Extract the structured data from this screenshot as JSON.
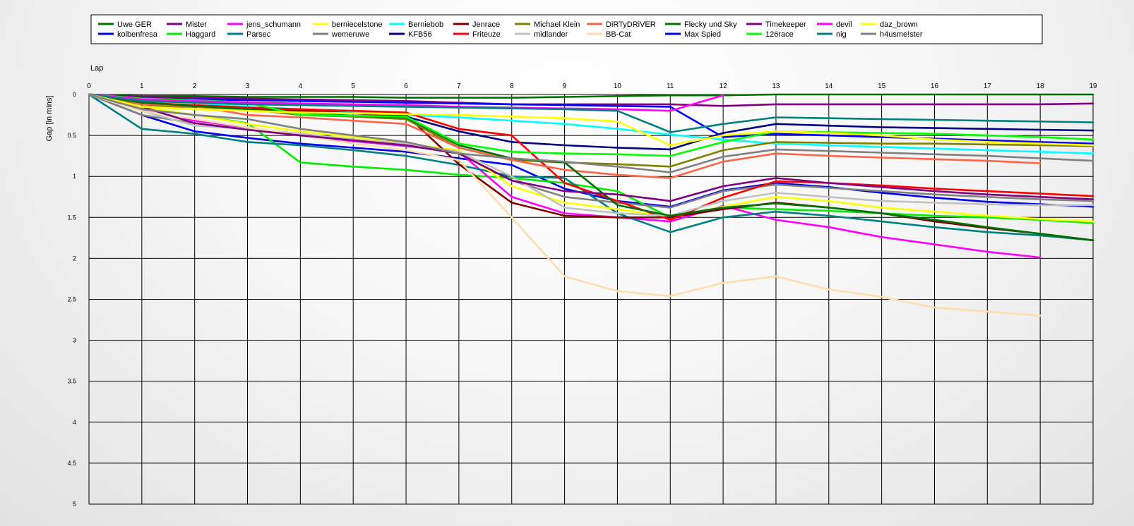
{
  "chart_data": {
    "type": "line",
    "xlabel": "Lap",
    "ylabel": "Gap [in mins]",
    "x": [
      0,
      1,
      2,
      3,
      4,
      5,
      6,
      7,
      8,
      9,
      10,
      11,
      12,
      13,
      14,
      15,
      16,
      17,
      18,
      19
    ],
    "xlim": [
      0,
      19
    ],
    "ylim": [
      0,
      5
    ],
    "y_inverted": true,
    "y_ticks": [
      0,
      0.5,
      1,
      1.5,
      2,
      2.5,
      3,
      3.5,
      4,
      4.5,
      5
    ],
    "grid": true,
    "legend_position": "top",
    "series": [
      {
        "name": "Uwe GER",
        "color": "#007000",
        "values": [
          0,
          0.02,
          0.02,
          0.03,
          0.03,
          0.03,
          0.04,
          0.04,
          0.04,
          0.03,
          0.02,
          0.01,
          0.01,
          0,
          0,
          0,
          0,
          0,
          0,
          0
        ]
      },
      {
        "name": "kolbenfresa",
        "color": "#0000ee",
        "values": [
          0,
          0.25,
          0.45,
          0.53,
          0.6,
          0.65,
          0.7,
          0.78,
          0.86,
          1.15,
          1.3,
          1.37,
          1.17,
          1.08,
          1.13,
          1.2,
          1.26,
          1.31,
          1.34,
          1.37
        ]
      },
      {
        "name": "Mister",
        "color": "#800080",
        "values": [
          0,
          0.03,
          0.04,
          0.05,
          0.06,
          0.07,
          0.08,
          0.1,
          0.12,
          0.12,
          0.12,
          0.12,
          0.14,
          0.12,
          0.12,
          0.12,
          0.12,
          0.12,
          0.12,
          0.11
        ]
      },
      {
        "name": "Haggard",
        "color": "#00ee00",
        "values": [
          0,
          0.15,
          0.25,
          0.35,
          0.83,
          0.88,
          0.92,
          0.98,
          1.02,
          1.08,
          1.18,
          1.5,
          1.38,
          1.4,
          1.42,
          1.45,
          1.48,
          1.5,
          1.53,
          1.57
        ]
      },
      {
        "name": "jens_schumann",
        "color": "#ff00ff",
        "values": [
          0,
          0.18,
          0.32,
          0.4,
          0.5,
          0.57,
          0.63,
          0.7,
          1.25,
          1.45,
          1.5,
          1.55,
          1.36,
          1.53,
          1.62,
          1.74,
          1.83,
          1.92,
          1.99,
          null
        ]
      },
      {
        "name": "Parsec",
        "color": "#008080",
        "values": [
          0,
          0.42,
          0.48,
          0.58,
          0.62,
          0.68,
          0.75,
          0.86,
          1.0,
          1.02,
          1.45,
          1.68,
          1.5,
          1.43,
          1.48,
          1.55,
          1.62,
          1.68,
          1.72,
          1.78
        ]
      },
      {
        "name": "berniecelstone",
        "color": "#ffff00",
        "values": [
          0,
          0.15,
          0.25,
          0.36,
          0.45,
          0.52,
          0.6,
          0.68,
          1.12,
          1.32,
          1.4,
          1.5,
          1.37,
          1.25,
          1.3,
          1.38,
          1.43,
          1.48,
          1.52,
          1.55
        ]
      },
      {
        "name": "wemeruwe",
        "color": "#808080",
        "values": [
          0,
          0.25,
          0.35,
          0.42,
          0.48,
          0.55,
          0.62,
          0.72,
          1.05,
          1.25,
          1.32,
          1.38,
          1.18,
          1.1,
          1.14,
          1.18,
          1.22,
          1.25,
          1.28,
          1.3
        ]
      },
      {
        "name": "Berniebob",
        "color": "#00ffff",
        "values": [
          0,
          0.05,
          0.1,
          0.15,
          0.18,
          0.22,
          0.25,
          0.28,
          0.32,
          0.36,
          0.42,
          0.49,
          0.55,
          0.6,
          0.62,
          0.64,
          0.66,
          0.68,
          0.7,
          0.72
        ]
      },
      {
        "name": "KFB56",
        "color": "#000080",
        "values": [
          0,
          0.12,
          0.15,
          0.18,
          0.2,
          0.23,
          0.27,
          0.45,
          0.58,
          0.62,
          0.65,
          0.67,
          0.47,
          0.36,
          0.38,
          0.4,
          0.41,
          0.42,
          0.43,
          0.44
        ]
      },
      {
        "name": "Jenrace",
        "color": "#800000",
        "values": [
          0,
          0.12,
          0.15,
          0.17,
          0.2,
          0.23,
          0.25,
          0.85,
          1.32,
          1.48,
          1.5,
          1.5,
          1.4,
          1.32,
          1.38,
          1.45,
          1.55,
          1.63,
          1.7,
          1.78
        ]
      },
      {
        "name": "Friteuze",
        "color": "#ff0000",
        "values": [
          0,
          0.1,
          0.13,
          0.16,
          0.18,
          0.2,
          0.22,
          0.42,
          0.5,
          1.08,
          1.3,
          1.53,
          1.26,
          1.06,
          1.08,
          1.11,
          1.15,
          1.18,
          1.21,
          1.24
        ]
      },
      {
        "name": "Michael Klein",
        "color": "#808000",
        "values": [
          0,
          0.15,
          0.15,
          0.18,
          0.25,
          0.27,
          0.3,
          0.65,
          0.8,
          0.83,
          0.85,
          0.88,
          0.68,
          0.58,
          0.59,
          0.6,
          0.6,
          0.61,
          0.62,
          0.63
        ]
      },
      {
        "name": "midlander",
        "color": "#c0c0c0",
        "values": [
          0,
          0.2,
          0.38,
          0.42,
          0.48,
          0.55,
          0.6,
          0.7,
          1.0,
          1.38,
          1.45,
          1.48,
          1.3,
          1.2,
          1.25,
          1.3,
          1.32,
          1.34,
          1.35,
          1.35
        ]
      },
      {
        "name": "DiRTyDRiVER",
        "color": "#ff6347",
        "values": [
          0,
          0.12,
          0.14,
          0.25,
          0.28,
          0.32,
          0.36,
          0.65,
          0.8,
          0.92,
          0.98,
          1.02,
          0.82,
          0.72,
          0.75,
          0.77,
          0.79,
          0.81,
          0.84,
          null
        ]
      },
      {
        "name": "BB-Cat",
        "color": "#ffdead",
        "values": [
          0,
          0.2,
          0.3,
          0.4,
          0.5,
          0.6,
          0.68,
          0.8,
          1.5,
          2.22,
          2.4,
          2.46,
          2.3,
          2.22,
          2.38,
          2.47,
          2.6,
          2.65,
          2.7,
          null
        ]
      },
      {
        "name": "Flecky und Sky",
        "color": "#007000",
        "values": [
          0,
          0.1,
          0.14,
          0.18,
          0.22,
          0.26,
          0.28,
          0.62,
          0.78,
          0.83,
          1.35,
          1.48,
          1.38,
          1.33,
          1.38,
          1.45,
          1.53,
          1.62,
          1.7,
          1.78
        ]
      },
      {
        "name": "Max Spied",
        "color": "#0000ff",
        "values": [
          0,
          0.05,
          0.06,
          0.07,
          0.08,
          0.09,
          0.1,
          0.11,
          0.12,
          0.13,
          0.14,
          0.15,
          0.52,
          0.48,
          0.5,
          0.52,
          0.54,
          0.56,
          0.58,
          0.6
        ]
      },
      {
        "name": "Timekeeper",
        "color": "#800080",
        "values": [
          0,
          0.15,
          0.35,
          0.43,
          0.5,
          0.56,
          0.62,
          0.72,
          1.05,
          1.18,
          1.22,
          1.3,
          1.12,
          1.02,
          1.08,
          1.13,
          1.18,
          1.22,
          1.25,
          1.28
        ]
      },
      {
        "name": "126race",
        "color": "#00ff00",
        "values": [
          0,
          0.05,
          0.07,
          0.1,
          0.25,
          0.26,
          0.27,
          0.6,
          0.7,
          0.72,
          0.73,
          0.75,
          0.58,
          0.45,
          0.46,
          0.47,
          0.48,
          0.5,
          0.52,
          0.55
        ]
      },
      {
        "name": "devil",
        "color": "#ff00ff",
        "values": [
          0,
          0.06,
          0.08,
          0.1,
          0.11,
          0.12,
          0.13,
          0.15,
          0.16,
          0.17,
          0.18,
          0.2,
          0.01,
          null,
          null,
          null,
          null,
          null,
          null,
          null
        ]
      },
      {
        "name": "nig",
        "color": "#008080",
        "values": [
          0,
          0.08,
          0.1,
          0.12,
          0.13,
          0.14,
          0.15,
          0.16,
          0.17,
          0.18,
          0.2,
          0.46,
          0.36,
          0.28,
          0.29,
          0.3,
          0.31,
          0.32,
          0.33,
          0.34
        ]
      },
      {
        "name": "daz_brown",
        "color": "#ffff00",
        "values": [
          0,
          0.15,
          0.18,
          0.2,
          0.22,
          0.23,
          0.24,
          0.25,
          0.27,
          0.29,
          0.33,
          0.62,
          0.5,
          0.45,
          0.47,
          0.5,
          0.55,
          0.58,
          0.6,
          0.62
        ]
      },
      {
        "name": "h4usme!ster",
        "color": "#808080",
        "values": [
          0,
          0.18,
          0.25,
          0.3,
          0.42,
          0.5,
          0.58,
          0.72,
          0.78,
          0.82,
          0.88,
          0.95,
          0.76,
          0.67,
          0.69,
          0.71,
          0.73,
          0.75,
          0.78,
          0.81
        ]
      }
    ]
  }
}
